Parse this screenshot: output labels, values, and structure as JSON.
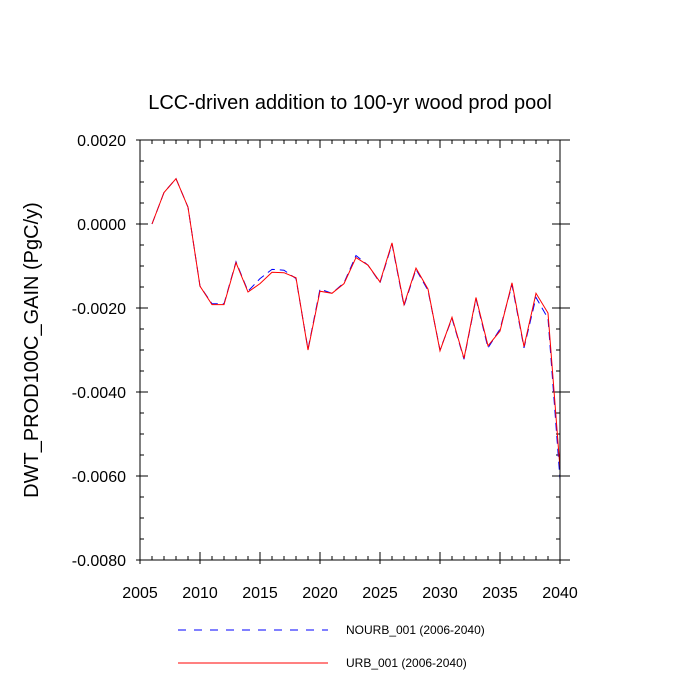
{
  "chart_data": {
    "type": "line",
    "title": "LCC-driven addition to 100-yr wood prod pool",
    "xlabel": "",
    "ylabel": "DWT_PROD100C_GAIN  (PgC/y)",
    "xlim": [
      2005,
      2040
    ],
    "ylim": [
      -0.008,
      0.002
    ],
    "xticks": [
      2005,
      2010,
      2015,
      2020,
      2025,
      2030,
      2035,
      2040
    ],
    "xtick_labels": [
      "2005",
      "2010",
      "2015",
      "2020",
      "2025",
      "2030",
      "2035",
      "2040"
    ],
    "yticks": [
      0.002,
      0,
      -0.002,
      -0.004,
      -0.006,
      -0.008
    ],
    "ytick_labels": [
      "0.0020",
      "0.0000",
      "-0.0020",
      "-0.0040",
      "-0.0060",
      "-0.0080"
    ],
    "grid": false,
    "legend_position": "bottom",
    "x": [
      2006,
      2007,
      2008,
      2009,
      2010,
      2011,
      2012,
      2013,
      2014,
      2015,
      2016,
      2017,
      2018,
      2019,
      2020,
      2021,
      2022,
      2023,
      2024,
      2025,
      2026,
      2027,
      2028,
      2029,
      2030,
      2031,
      2032,
      2033,
      2034,
      2035,
      2036,
      2037,
      2038,
      2039,
      2040
    ],
    "series": [
      {
        "name": "NOURB_001 (2006-2040)",
        "color": "#0000ff",
        "style": "dashed",
        "values": [
          0.0,
          0.00075,
          0.00108,
          0.0004,
          -0.00148,
          -0.0019,
          -0.0019,
          -0.0009,
          -0.0016,
          -0.0013,
          -0.00108,
          -0.0011,
          -0.0013,
          -0.00298,
          -0.00155,
          -0.00165,
          -0.0014,
          -0.00075,
          -0.00098,
          -0.0014,
          -0.00048,
          -0.00195,
          -0.00108,
          -0.00158,
          -0.003,
          -0.00225,
          -0.00322,
          -0.00178,
          -0.00295,
          -0.0025,
          -0.00145,
          -0.00295,
          -0.00175,
          -0.00225,
          -0.00608
        ]
      },
      {
        "name": "URB_001 (2006-2040)",
        "color": "#ff0000",
        "style": "solid",
        "values": [
          0.0,
          0.00075,
          0.00108,
          0.0004,
          -0.00148,
          -0.00192,
          -0.00192,
          -0.00092,
          -0.00162,
          -0.00142,
          -0.00115,
          -0.00116,
          -0.00128,
          -0.003,
          -0.0016,
          -0.00165,
          -0.00142,
          -0.0008,
          -0.00098,
          -0.00138,
          -0.00045,
          -0.00192,
          -0.00105,
          -0.00155,
          -0.00302,
          -0.00222,
          -0.0032,
          -0.00175,
          -0.0029,
          -0.00255,
          -0.0014,
          -0.00292,
          -0.00165,
          -0.00212,
          -0.00582
        ]
      }
    ]
  }
}
